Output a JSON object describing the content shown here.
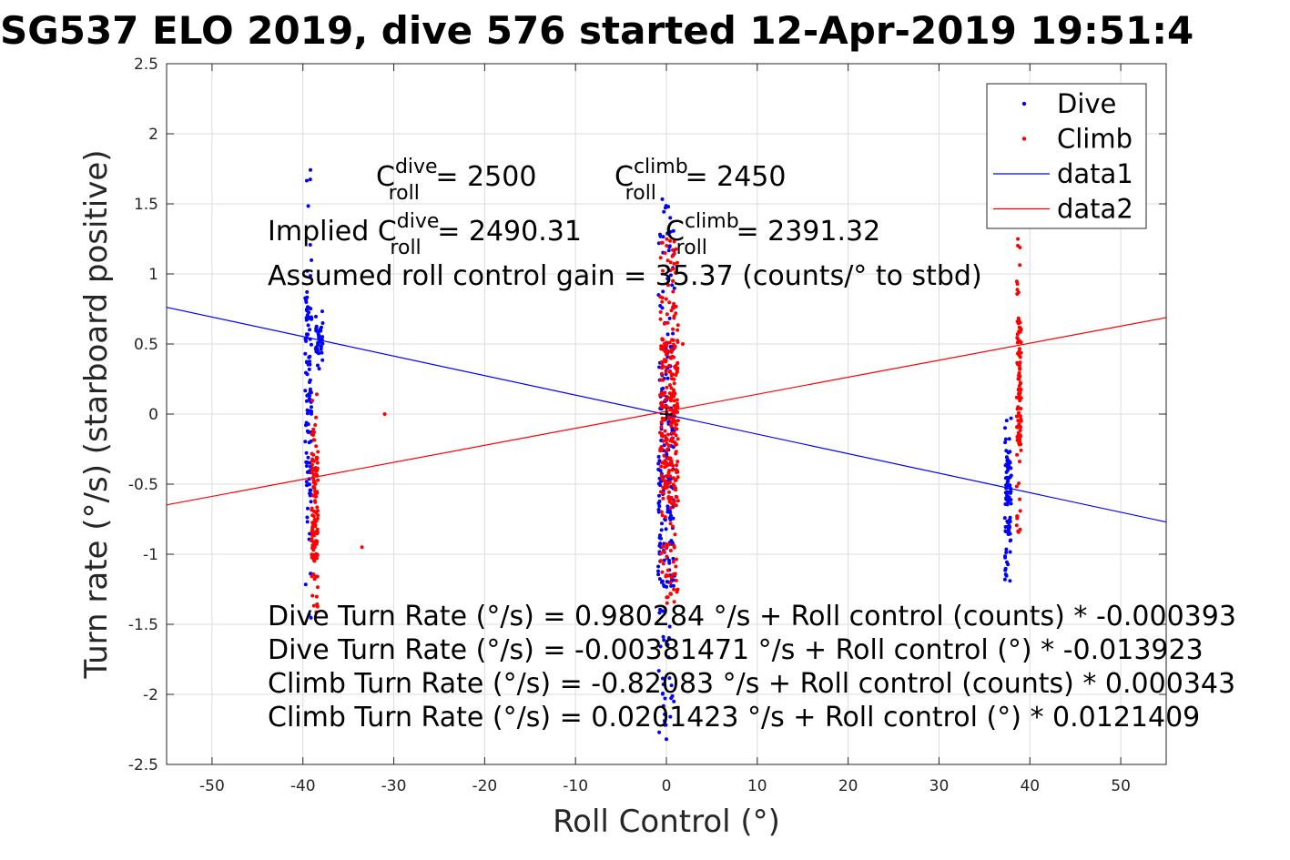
{
  "chart_data": {
    "type": "scatter",
    "title": "SG537 ELO 2019, dive 576 started 12-Apr-2019 19:51:4",
    "xlabel": "Roll Control (°)",
    "ylabel": "Turn rate (°/s) (starboard positive)",
    "xlim": [
      -55,
      55
    ],
    "ylim": [
      -2.5,
      2.5
    ],
    "xticks": [
      -50,
      -40,
      -30,
      -20,
      -10,
      0,
      10,
      20,
      30,
      40,
      50
    ],
    "xtick_labels": [
      "-50",
      "-40",
      "-30",
      "-20",
      "-10",
      "0",
      "10",
      "20",
      "30",
      "40",
      "50"
    ],
    "yticks": [
      -2.5,
      -2,
      -1.5,
      -1,
      -0.5,
      0,
      0.5,
      1,
      1.5,
      2,
      2.5
    ],
    "ytick_labels": [
      "-2.5",
      "-2",
      "-1.5",
      "-1",
      "-0.5",
      "0",
      "0.5",
      "1",
      "1.5",
      "2",
      "2.5"
    ],
    "grid": true,
    "legend_position": "top-right",
    "colors": {
      "dive": "#0000ff",
      "climb": "#ff0000"
    },
    "legend": [
      {
        "label": "Dive",
        "kind": "marker",
        "color": "#0000ff"
      },
      {
        "label": "Climb",
        "kind": "marker",
        "color": "#ff0000"
      },
      {
        "label": "data1",
        "kind": "line",
        "color": "#0000ff"
      },
      {
        "label": "data2",
        "kind": "line",
        "color": "#ff0000"
      }
    ],
    "lines": [
      {
        "name": "data1",
        "color": "#0000ff",
        "x": [
          -55,
          55
        ],
        "y": [
          0.762,
          -0.77
        ]
      },
      {
        "name": "data2",
        "color": "#ff0000",
        "x": [
          -55,
          55
        ],
        "y": [
          -0.648,
          0.688
        ]
      }
    ],
    "point_clusters": [
      {
        "series": "Dive",
        "color": "#0000ff",
        "x_center": -39.4,
        "x_spread": 0.35,
        "y": [
          -1.5,
          1.75
        ],
        "count": 110
      },
      {
        "series": "Dive",
        "color": "#0000ff",
        "x_center": -38.2,
        "x_spread": 0.4,
        "y": [
          0.3,
          0.75
        ],
        "count": 40
      },
      {
        "series": "Dive",
        "color": "#0000ff",
        "x_center": 0.0,
        "x_spread": 0.9,
        "y": [
          -2.32,
          1.62
        ],
        "count": 230
      },
      {
        "series": "Dive",
        "color": "#0000ff",
        "x_center": 37.6,
        "x_spread": 0.35,
        "y": [
          -1.2,
          0.0
        ],
        "count": 90
      },
      {
        "series": "Climb",
        "color": "#ff0000",
        "x_center": -38.7,
        "x_spread": 0.35,
        "y": [
          -1.48,
          0.15
        ],
        "count": 130
      },
      {
        "series": "Climb",
        "color": "#ff0000",
        "x_center": 0.3,
        "x_spread": 1.0,
        "y": [
          -1.35,
          1.25
        ],
        "count": 320
      },
      {
        "series": "Climb",
        "color": "#ff0000",
        "x_center": 38.8,
        "x_spread": 0.25,
        "y": [
          -0.85,
          1.25
        ],
        "count": 110
      }
    ],
    "outliers": [
      {
        "series": "Climb",
        "x": -31,
        "y": 0.0
      },
      {
        "series": "Climb",
        "x": -33.5,
        "y": -0.95
      },
      {
        "series": "Climb",
        "x": 1.8,
        "y": 0.5
      },
      {
        "series": "Dive",
        "x": 0.0,
        "y": -2.32
      }
    ],
    "annotations": {
      "c_dive": {
        "prefix": "C",
        "sup": "dive",
        "sub": "roll",
        "rest": " = 2500"
      },
      "c_climb": {
        "prefix": "C",
        "sup": "climb",
        "sub": "roll",
        "rest": " = 2450"
      },
      "implied_dive": {
        "prefix": "Implied C",
        "sup": "dive",
        "sub": "roll",
        "rest": " = 2490.31"
      },
      "implied_climb": {
        "prefix": "C",
        "sup": "climb",
        "sub": "roll",
        "rest": " = 2391.32"
      },
      "gain": "Assumed roll control gain = 35.37 (counts/° to stbd)",
      "eq1": "Dive Turn Rate (°/s) = 0.980284 °/s + Roll control (counts) * -0.000393",
      "eq2": "Dive Turn Rate (°/s) = -0.00381471 °/s + Roll control (°) * -0.013923",
      "eq3": "Climb Turn Rate (°/s) = -0.82083 °/s + Roll control (counts) * 0.000343",
      "eq4": "Climb Turn Rate (°/s) = 0.0201423 °/s + Roll control (°) * 0.0121409"
    }
  }
}
